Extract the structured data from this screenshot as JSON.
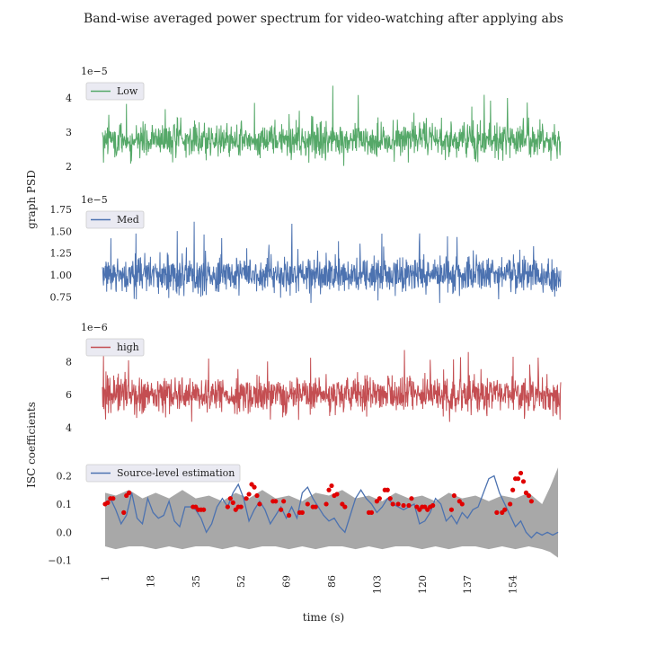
{
  "figure": {
    "title": "Band-wise averaged power spectrum for video-watching after applying abs",
    "ylabel_psd": "graph PSD",
    "ylabel_isc": "ISC coefficients",
    "xlabel": "time (s)",
    "grid": false,
    "background": "#ffffff"
  },
  "chart_data": [
    {
      "type": "line",
      "series": [
        {
          "name": "Low",
          "color": "#55a868"
        }
      ],
      "offset_label": "1e−5",
      "scale": 1e-05,
      "yticks": [
        2,
        3,
        4
      ],
      "ylim": [
        1.6,
        4.5
      ],
      "mean": 2.75,
      "amplitude": 0.45,
      "min": 1.65,
      "max": 4.5,
      "n_points": 1300,
      "legend_position": "top-left"
    },
    {
      "type": "line",
      "series": [
        {
          "name": "Med",
          "color": "#4c72b0"
        }
      ],
      "offset_label": "1e−5",
      "scale": 1e-05,
      "yticks": [
        0.75,
        1.0,
        1.25,
        1.5,
        1.75
      ],
      "tick_labels": [
        "0.75",
        "1.00",
        "1.25",
        "1.50",
        "1.75"
      ],
      "ylim": [
        0.65,
        1.75
      ],
      "mean": 1.0,
      "amplitude": 0.18,
      "min": 0.68,
      "max": 1.75,
      "n_points": 1300,
      "legend_position": "top-left"
    },
    {
      "type": "line",
      "series": [
        {
          "name": "high",
          "color": "#c44e52"
        }
      ],
      "offset_label": "1e−6",
      "scale": 1e-06,
      "yticks": [
        4,
        6,
        8
      ],
      "ylim": [
        3.5,
        9.5
      ],
      "mean": 6.0,
      "amplitude": 1.0,
      "min": 3.6,
      "max": 9.4,
      "n_points": 1300,
      "legend_position": "top-left"
    },
    {
      "type": "line",
      "series": [
        {
          "name": "Source-level estimation",
          "color": "#4c72b0",
          "x": [
            1,
            3,
            5,
            7,
            9,
            11,
            13,
            15,
            17,
            19,
            21,
            23,
            25,
            27,
            29,
            31,
            33,
            35,
            37,
            39,
            41,
            43,
            45,
            47,
            49,
            51,
            53,
            55,
            57,
            59,
            61,
            63,
            65,
            67,
            69,
            71,
            73,
            75,
            77,
            79,
            81,
            83,
            85,
            87,
            89,
            91,
            93,
            95,
            97,
            99,
            101,
            103,
            105,
            107,
            109,
            111,
            113,
            115,
            117,
            119,
            121,
            123,
            125,
            127,
            129,
            131,
            133,
            135,
            137,
            139,
            141,
            143,
            145,
            147,
            149,
            151,
            153,
            155,
            157,
            159,
            161,
            163,
            165,
            167,
            169,
            171
          ],
          "values": [
            0.1,
            0.12,
            0.08,
            0.03,
            0.06,
            0.14,
            0.05,
            0.03,
            0.12,
            0.07,
            0.05,
            0.06,
            0.11,
            0.04,
            0.02,
            0.09,
            0.09,
            0.08,
            0.05,
            0.0,
            0.03,
            0.09,
            0.12,
            0.09,
            0.14,
            0.17,
            0.12,
            0.04,
            0.08,
            0.11,
            0.08,
            0.03,
            0.06,
            0.09,
            0.05,
            0.09,
            0.05,
            0.14,
            0.16,
            0.12,
            0.09,
            0.06,
            0.04,
            0.05,
            0.02,
            0.0,
            0.06,
            0.12,
            0.15,
            0.12,
            0.1,
            0.07,
            0.09,
            0.12,
            0.1,
            0.09,
            0.08,
            0.09,
            0.1,
            0.03,
            0.04,
            0.07,
            0.12,
            0.1,
            0.04,
            0.06,
            0.03,
            0.07,
            0.05,
            0.08,
            0.09,
            0.14,
            0.19,
            0.2,
            0.14,
            0.1,
            0.06,
            0.02,
            0.04,
            0.0,
            -0.02,
            0.0,
            -0.01,
            0.0,
            -0.01,
            0.0
          ]
        }
      ],
      "significant_points": [
        [
          1,
          0.1
        ],
        [
          2,
          0.105
        ],
        [
          3,
          0.12
        ],
        [
          4,
          0.12
        ],
        [
          8,
          0.07
        ],
        [
          9,
          0.13
        ],
        [
          10,
          0.14
        ],
        [
          34,
          0.09
        ],
        [
          35,
          0.09
        ],
        [
          36,
          0.08
        ],
        [
          37,
          0.08
        ],
        [
          38,
          0.08
        ],
        [
          47,
          0.09
        ],
        [
          48,
          0.12
        ],
        [
          49,
          0.105
        ],
        [
          50,
          0.08
        ],
        [
          51,
          0.09
        ],
        [
          52,
          0.09
        ],
        [
          54,
          0.12
        ],
        [
          55,
          0.135
        ],
        [
          56,
          0.17
        ],
        [
          57,
          0.16
        ],
        [
          58,
          0.13
        ],
        [
          59,
          0.1
        ],
        [
          64,
          0.11
        ],
        [
          65,
          0.11
        ],
        [
          67,
          0.08
        ],
        [
          68,
          0.11
        ],
        [
          70,
          0.06
        ],
        [
          74,
          0.07
        ],
        [
          75,
          0.07
        ],
        [
          77,
          0.1
        ],
        [
          79,
          0.09
        ],
        [
          80,
          0.09
        ],
        [
          84,
          0.1
        ],
        [
          85,
          0.15
        ],
        [
          86,
          0.165
        ],
        [
          87,
          0.13
        ],
        [
          88,
          0.135
        ],
        [
          90,
          0.1
        ],
        [
          91,
          0.09
        ],
        [
          100,
          0.07
        ],
        [
          101,
          0.07
        ],
        [
          103,
          0.11
        ],
        [
          104,
          0.12
        ],
        [
          106,
          0.15
        ],
        [
          107,
          0.15
        ],
        [
          108,
          0.12
        ],
        [
          109,
          0.1
        ],
        [
          111,
          0.1
        ],
        [
          113,
          0.095
        ],
        [
          115,
          0.095
        ],
        [
          116,
          0.12
        ],
        [
          118,
          0.09
        ],
        [
          119,
          0.08
        ],
        [
          120,
          0.09
        ],
        [
          121,
          0.09
        ],
        [
          122,
          0.08
        ],
        [
          123,
          0.09
        ],
        [
          124,
          0.095
        ],
        [
          131,
          0.08
        ],
        [
          132,
          0.13
        ],
        [
          134,
          0.11
        ],
        [
          135,
          0.1
        ],
        [
          148,
          0.07
        ],
        [
          150,
          0.07
        ],
        [
          151,
          0.08
        ],
        [
          153,
          0.1
        ],
        [
          154,
          0.15
        ],
        [
          155,
          0.19
        ],
        [
          156,
          0.19
        ],
        [
          157,
          0.21
        ],
        [
          158,
          0.18
        ],
        [
          159,
          0.14
        ],
        [
          160,
          0.13
        ],
        [
          161,
          0.11
        ]
      ],
      "band": {
        "color": "#999999",
        "x": [
          1,
          5,
          10,
          15,
          20,
          25,
          30,
          35,
          40,
          45,
          50,
          55,
          60,
          65,
          70,
          75,
          80,
          85,
          90,
          95,
          100,
          105,
          110,
          115,
          120,
          125,
          130,
          135,
          140,
          145,
          150,
          155,
          160,
          165,
          168,
          171
        ],
        "upper": [
          0.14,
          0.13,
          0.15,
          0.12,
          0.14,
          0.12,
          0.15,
          0.12,
          0.13,
          0.11,
          0.14,
          0.12,
          0.15,
          0.12,
          0.13,
          0.11,
          0.14,
          0.13,
          0.15,
          0.12,
          0.13,
          0.11,
          0.14,
          0.12,
          0.13,
          0.11,
          0.14,
          0.12,
          0.13,
          0.11,
          0.13,
          0.12,
          0.14,
          0.1,
          0.16,
          0.23
        ],
        "lower": [
          -0.05,
          -0.06,
          -0.05,
          -0.05,
          -0.06,
          -0.05,
          -0.06,
          -0.05,
          -0.05,
          -0.06,
          -0.05,
          -0.06,
          -0.05,
          -0.05,
          -0.06,
          -0.05,
          -0.06,
          -0.05,
          -0.05,
          -0.06,
          -0.05,
          -0.06,
          -0.05,
          -0.05,
          -0.06,
          -0.05,
          -0.06,
          -0.05,
          -0.05,
          -0.06,
          -0.05,
          -0.06,
          -0.05,
          -0.06,
          -0.07,
          -0.09
        ]
      },
      "point_color": "#e00000",
      "yticks": [
        -0.1,
        0.0,
        0.1,
        0.2
      ],
      "tick_labels": [
        "−0.1",
        "0.0",
        "0.1",
        "0.2"
      ],
      "ylim": [
        -0.12,
        0.24
      ],
      "xlim": [
        0,
        172
      ],
      "xticks": [
        1,
        18,
        35,
        52,
        69,
        86,
        103,
        120,
        137,
        154
      ],
      "xtick_labels": [
        "1",
        "18",
        "35",
        "52",
        "69",
        "86",
        "103",
        "120",
        "137",
        "154"
      ],
      "legend_position": "top-left"
    }
  ]
}
